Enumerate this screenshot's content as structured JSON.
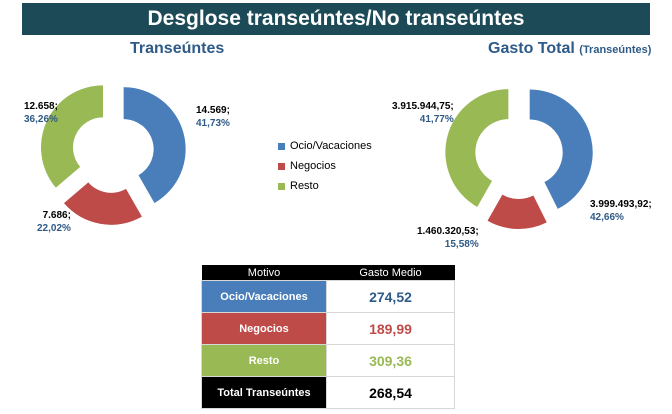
{
  "header": {
    "title": "Desglose transeúntes/No transeúntes"
  },
  "colors": {
    "ocio": "#4a7ebb",
    "negocios": "#be4b48",
    "resto": "#98b954",
    "banner": "#1d4a57",
    "label": "#2e5a87"
  },
  "chart_data": [
    {
      "type": "pie",
      "title": "Transeúntes",
      "categories": [
        "Ocio/Vacaciones",
        "Negocios",
        "Resto"
      ],
      "values": [
        14569,
        7686,
        12658
      ],
      "value_labels": [
        "14.569;",
        "7.686;",
        "12.658;"
      ],
      "percent_labels": [
        "41,73%",
        "22,02%",
        "36,26%"
      ]
    },
    {
      "type": "pie",
      "title": "Gasto Total",
      "subtitle": "(Transeúntes)",
      "categories": [
        "Ocio/Vacaciones",
        "Negocios",
        "Resto"
      ],
      "values": [
        3999493.92,
        1460320.53,
        3915944.75
      ],
      "value_labels": [
        "3.999.493,92;",
        "1.460.320,53;",
        "3.915.944,75;"
      ],
      "percent_labels": [
        "42,66%",
        "15,58%",
        "41,77%"
      ]
    }
  ],
  "legend": [
    "Ocio/Vacaciones",
    "Negocios",
    "Resto"
  ],
  "table": {
    "headers": [
      "Motivo",
      "Gasto Medio"
    ],
    "rows": [
      {
        "label": "Ocio/Vacaciones",
        "value": "274,52",
        "bg": "#4a7ebb",
        "fg": "#2e5a87"
      },
      {
        "label": "Negocios",
        "value": "189,99",
        "bg": "#be4b48",
        "fg": "#be4b48"
      },
      {
        "label": "Resto",
        "value": "309,36",
        "bg": "#98b954",
        "fg": "#98b954"
      },
      {
        "label": "Total Transeúntes",
        "value": "268,54",
        "bg": "#000000",
        "fg": "#000000"
      }
    ]
  }
}
